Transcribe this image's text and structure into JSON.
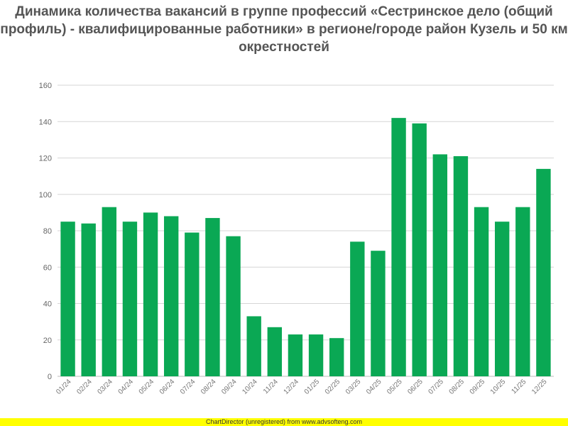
{
  "chart_data": {
    "type": "bar",
    "title": "Динамика количества вакансий в группе профессий «Сестринское дело (общий профиль) - квалифицированные работники» в регионе/городе район Кузель и 50 км окрестностей",
    "categories": [
      "01/24",
      "02/24",
      "03/24",
      "04/24",
      "05/24",
      "06/24",
      "07/24",
      "08/24",
      "09/24",
      "10/24",
      "11/24",
      "12/24",
      "01/25",
      "02/25",
      "03/25",
      "04/25",
      "05/25",
      "06/25",
      "07/25",
      "08/25",
      "09/25",
      "10/25",
      "11/25",
      "12/25"
    ],
    "values": [
      85,
      84,
      93,
      85,
      90,
      88,
      79,
      87,
      77,
      33,
      27,
      23,
      23,
      21,
      74,
      69,
      142,
      139,
      122,
      121,
      93,
      85,
      93,
      114
    ],
    "ylim": [
      0,
      160
    ],
    "yticks": [
      0,
      20,
      40,
      60,
      80,
      100,
      120,
      140,
      160
    ],
    "xlabel": "",
    "ylabel": "",
    "grid": true,
    "bar_color": "#0aa854",
    "grid_color": "#d6d6d6"
  },
  "footer": {
    "text": "ChartDirector (unregistered) from www.advsofteng.com"
  }
}
